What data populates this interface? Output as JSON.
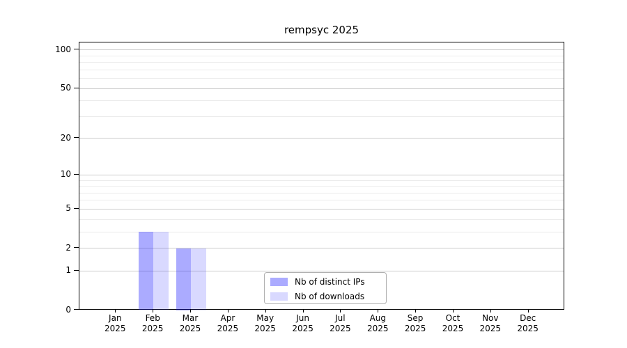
{
  "title": "rempsyc 2025",
  "chart_data": {
    "type": "bar",
    "title": "rempsyc 2025",
    "categories": [
      "Jan",
      "Feb",
      "Mar",
      "Apr",
      "May",
      "Jun",
      "Jul",
      "Aug",
      "Sep",
      "Oct",
      "Nov",
      "Dec"
    ],
    "x_tick_second_line": "2025",
    "series": [
      {
        "name": "Nb of distinct IPs",
        "color": "rgba(0,0,255,0.33)",
        "color_hex": "#aaaaff",
        "values": [
          0,
          3,
          2,
          0,
          0,
          0,
          0,
          0,
          0,
          0,
          0,
          0
        ]
      },
      {
        "name": "Nb of downloads",
        "color": "rgba(0,0,255,0.15)",
        "color_hex": "#d8d8ff",
        "values": [
          0,
          3,
          2,
          0,
          0,
          0,
          0,
          0,
          0,
          0,
          0,
          0
        ]
      }
    ],
    "y_axis": {
      "scale": "log10(1+v)",
      "major_ticks": [
        0,
        1,
        2,
        5,
        10,
        20,
        50,
        100
      ],
      "minor_gridlines": [
        3,
        4,
        6,
        7,
        8,
        9,
        30,
        40,
        60,
        70,
        80,
        90
      ],
      "ylim": [
        0,
        114
      ]
    },
    "grid": true,
    "legend_position": "lower center"
  },
  "colors": {
    "major_grid": "#cccccc",
    "minor_grid": "#ebebeb",
    "spine": "#000000",
    "legend_border": "#b0b0b0",
    "background": "#ffffff"
  }
}
